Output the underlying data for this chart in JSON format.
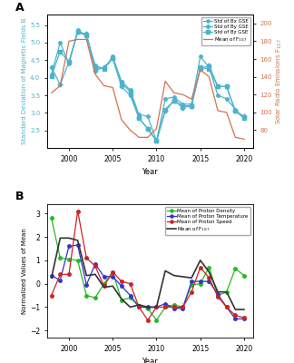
{
  "panel_A": {
    "years": [
      1998,
      1999,
      2000,
      2001,
      2002,
      2003,
      2004,
      2005,
      2006,
      2007,
      2008,
      2009,
      2010,
      2011,
      2012,
      2013,
      2014,
      2015,
      2016,
      2017,
      2018,
      2019,
      2020
    ],
    "bx": [
      4.1,
      5.0,
      4.4,
      5.35,
      5.2,
      4.35,
      4.25,
      4.6,
      3.9,
      3.65,
      2.95,
      2.9,
      2.2,
      3.4,
      3.45,
      3.25,
      3.25,
      4.6,
      4.3,
      3.5,
      3.4,
      3.1,
      2.85
    ],
    "by": [
      4.3,
      3.8,
      4.45,
      5.3,
      5.25,
      4.2,
      4.3,
      4.55,
      3.75,
      3.5,
      2.85,
      2.55,
      2.2,
      3.05,
      3.35,
      3.15,
      3.2,
      4.25,
      4.35,
      3.75,
      3.75,
      3.05,
      2.9
    ],
    "bz": [
      4.05,
      4.75,
      4.45,
      5.3,
      5.2,
      4.3,
      4.25,
      4.55,
      3.85,
      3.6,
      2.85,
      2.55,
      2.2,
      3.1,
      3.35,
      3.2,
      3.2,
      4.3,
      4.25,
      3.75,
      3.75,
      3.05,
      2.85
    ],
    "f107": [
      122,
      130,
      180,
      182,
      182,
      143,
      130,
      128,
      92,
      80,
      72,
      72,
      82,
      135,
      122,
      120,
      115,
      148,
      140,
      102,
      100,
      72,
      70
    ],
    "ylim_left": [
      2.0,
      5.8
    ],
    "ylim_right": [
      60,
      210
    ],
    "yticks_left": [
      2.5,
      3.0,
      3.5,
      4.0,
      4.5,
      5.0,
      5.5
    ],
    "yticks_right": [
      80,
      100,
      120,
      140,
      160,
      180,
      200
    ],
    "ylabel_left": "Standard Deviation of Magnetic Fields B",
    "ylabel_right": "Solar Radio Emissions F$_{10.7}$",
    "xlabel": "Year",
    "title": "A",
    "legend_labels": [
      "Std of Bx GSE",
      "Std of By GSE",
      "Std of Bz GSE",
      "Mean of F$_{10.7}$"
    ],
    "line_color_blue": "#4db3cc",
    "line_color_orange": "#d4714e",
    "xlim": [
      1997.5,
      2021
    ]
  },
  "panel_B": {
    "years": [
      1998,
      1999,
      2000,
      2001,
      2002,
      2003,
      2004,
      2005,
      2006,
      2007,
      2008,
      2009,
      2010,
      2011,
      2012,
      2013,
      2014,
      2015,
      2016,
      2017,
      2018,
      2019,
      2020
    ],
    "proton_density": [
      2.8,
      1.1,
      1.05,
      1.0,
      -0.5,
      -0.6,
      0.0,
      0.5,
      -0.7,
      -0.6,
      -0.95,
      -1.05,
      -1.55,
      -1.0,
      -0.9,
      -1.0,
      -0.05,
      0.0,
      0.7,
      -0.5,
      -0.35,
      0.65,
      0.35
    ],
    "proton_temp": [
      0.35,
      0.15,
      1.6,
      1.65,
      -0.05,
      0.85,
      0.3,
      0.3,
      -0.1,
      -0.5,
      -1.0,
      -1.0,
      -1.0,
      -0.85,
      -1.05,
      -1.05,
      0.1,
      0.1,
      0.1,
      -0.45,
      -1.0,
      -1.5,
      -1.5
    ],
    "proton_speed": [
      -0.5,
      0.4,
      0.4,
      3.1,
      1.1,
      0.75,
      -0.1,
      0.5,
      0.1,
      0.0,
      -1.0,
      -1.55,
      -1.0,
      -1.0,
      -1.0,
      -1.0,
      -0.35,
      0.7,
      0.25,
      -0.55,
      -1.0,
      -1.35,
      -1.45
    ],
    "f107_norm": [
      0.25,
      1.95,
      1.95,
      1.85,
      0.35,
      0.4,
      -0.15,
      -0.1,
      -0.65,
      -1.0,
      -0.9,
      -1.0,
      -1.0,
      0.55,
      0.35,
      0.3,
      0.25,
      1.0,
      0.5,
      -0.35,
      -0.35,
      -1.1,
      -1.1
    ],
    "ylim": [
      -2.3,
      3.4
    ],
    "yticks": [
      -2,
      -1,
      0,
      1,
      2,
      3
    ],
    "ylabel": "Normalized Values of Mean",
    "xlabel": "Year",
    "title": "B",
    "legend_labels": [
      "Mean of Proton Density",
      "Mean of Proton Temperature",
      "Mean of Proton Speed",
      "Mean of F$_{10.7}$"
    ],
    "color_green": "#22bb22",
    "color_blue": "#3333cc",
    "color_red": "#cc2222",
    "color_black": "#333333",
    "xlim": [
      1997.5,
      2021
    ]
  },
  "fig_bg": "#ffffff",
  "xticks": [
    2000,
    2005,
    2010,
    2015,
    2020
  ]
}
